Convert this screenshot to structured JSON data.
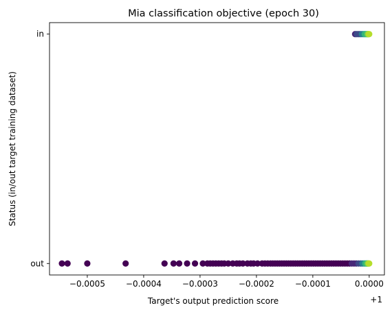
{
  "chart_data": {
    "type": "scatter",
    "title": "Mia classification objective (epoch 30)",
    "xlabel": "Target's output prediction score",
    "ylabel": "Status (in/out target training dataset)",
    "x_offset_label": "+1",
    "x_units_note": "x values are offsets from 1 (tick labels are relative to +1)",
    "xlim": [
      -0.000567,
      2.7e-05
    ],
    "ylim": [
      -0.05,
      1.05
    ],
    "x_ticks": [
      -0.0005,
      -0.0004,
      -0.0003,
      -0.0002,
      -0.0001,
      0.0
    ],
    "x_tick_labels": [
      "−0.0005",
      "−0.0004",
      "−0.0003",
      "−0.0002",
      "−0.0001",
      "0.0000"
    ],
    "y_ticks": [
      0,
      1
    ],
    "y_tick_labels": [
      "out",
      "in"
    ],
    "grid": false,
    "legend": "none",
    "colormap": [
      "#440154",
      "#482878",
      "#3e4a89",
      "#31688e",
      "#26828e",
      "#1f9e89",
      "#35b779",
      "#6ece58",
      "#b5de2b"
    ],
    "in_points": [
      -2.5e-05,
      -2.2e-05,
      -1.9e-05,
      -1.6e-05,
      -1.3e-05,
      -1e-05,
      -8e-06,
      -6e-06,
      -4e-06,
      -3e-06,
      -2e-06,
      -1e-06,
      0.0
    ],
    "out_points": [
      -0.000545,
      -0.000535,
      -0.0005,
      -0.000432,
      -0.000363,
      -0.000347,
      -0.000337,
      -0.000323,
      -0.000309,
      -0.000295,
      -0.000287,
      -0.000282,
      -0.000277,
      -0.000272,
      -0.000267,
      -0.000262,
      -0.000257,
      -0.00025,
      -0.000242,
      -0.000235,
      -0.00023,
      -0.000224,
      -0.000216,
      -0.00021,
      -0.000205,
      -0.000198,
      -0.00019,
      -0.000185,
      -0.00018,
      -0.000175,
      -0.000171,
      -0.000167,
      -0.000163,
      -0.000159,
      -0.000155,
      -0.000151,
      -0.000147,
      -0.000143,
      -0.000139,
      -0.000135,
      -0.000131,
      -0.000127,
      -0.000123,
      -0.000119,
      -0.000115,
      -0.000111,
      -0.000107,
      -0.000103,
      -9.9e-05,
      -9.5e-05,
      -9.1e-05,
      -8.7e-05,
      -8.3e-05,
      -7.9e-05,
      -7.5e-05,
      -7.1e-05,
      -6.7e-05,
      -6.3e-05,
      -5.9e-05,
      -5.5e-05,
      -5.1e-05,
      -4.7e-05,
      -4.3e-05,
      -3.9e-05,
      -3.5e-05,
      -3.1e-05,
      -2.7e-05,
      -2.3e-05,
      -1.9e-05,
      -1.5e-05,
      -1.2e-05,
      -9e-06,
      -7e-06,
      -5e-06,
      -4e-06,
      -3e-06,
      -2e-06,
      -1e-06,
      0.0
    ]
  }
}
